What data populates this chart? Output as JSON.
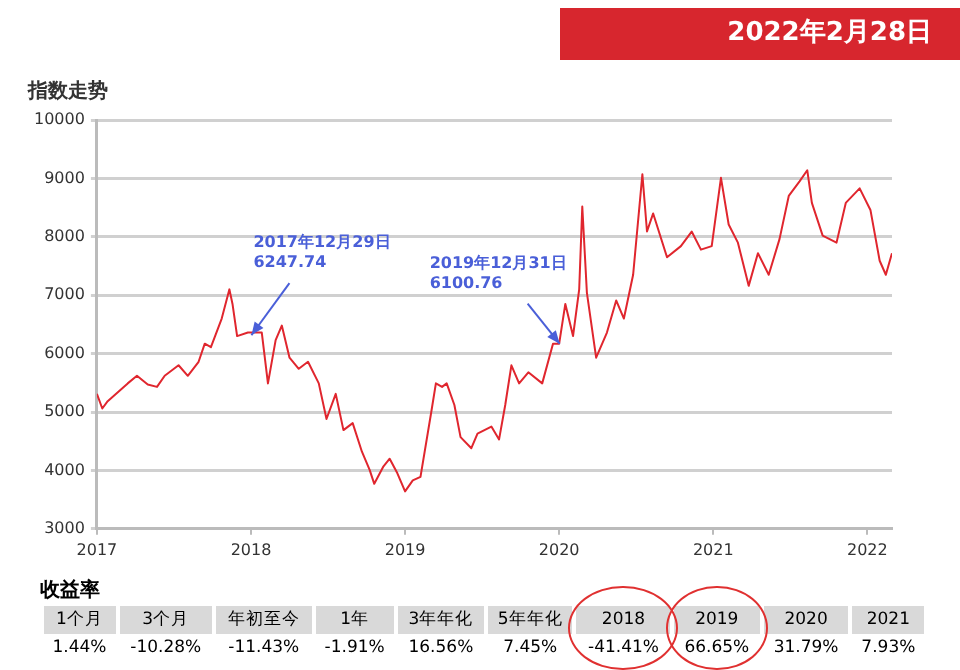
{
  "chart_data": {
    "type": "line",
    "title": "指数走势",
    "subtitle": "2022年2月28日",
    "x": [
      2017.0,
      2017.035,
      2017.07,
      2017.2,
      2017.26,
      2017.33,
      2017.39,
      2017.44,
      2017.53,
      2017.59,
      2017.66,
      2017.7,
      2017.74,
      2017.81,
      2017.86,
      2017.88,
      2017.91,
      2017.98,
      2018.07,
      2018.11,
      2018.16,
      2018.2,
      2018.25,
      2018.31,
      2018.37,
      2018.44,
      2018.49,
      2018.55,
      2018.6,
      2018.66,
      2018.72,
      2018.77,
      2018.8,
      2018.86,
      2018.9,
      2018.95,
      2019.0,
      2019.05,
      2019.1,
      2019.17,
      2019.2,
      2019.24,
      2019.27,
      2019.32,
      2019.36,
      2019.43,
      2019.47,
      2019.56,
      2019.61,
      2019.65,
      2019.69,
      2019.74,
      2019.8,
      2019.89,
      2019.96,
      2020.0,
      2020.04,
      2020.09,
      2020.13,
      2020.15,
      2020.18,
      2020.24,
      2020.31,
      2020.37,
      2020.42,
      2020.48,
      2020.54,
      2020.57,
      2020.61,
      2020.7,
      2020.79,
      2020.86,
      2020.92,
      2020.99,
      2021.05,
      2021.1,
      2021.16,
      2021.23,
      2021.29,
      2021.36,
      2021.43,
      2021.49,
      2021.56,
      2021.61,
      2021.64,
      2021.71,
      2021.8,
      2021.86,
      2021.95,
      2022.02,
      2022.08,
      2022.12,
      2022.16
    ],
    "series": [
      {
        "color": "#e0262e",
        "values": [
          5310,
          5060,
          5185,
          5490,
          5620,
          5470,
          5430,
          5620,
          5800,
          5620,
          5860,
          6170,
          6110,
          6600,
          7100,
          6850,
          6300,
          6360,
          6360,
          5490,
          6230,
          6480,
          5930,
          5740,
          5860,
          5490,
          4880,
          5310,
          4690,
          4810,
          4320,
          4010,
          3770,
          4070,
          4200,
          3950,
          3640,
          3830,
          3890,
          5000,
          5490,
          5430,
          5490,
          5120,
          4570,
          4380,
          4630,
          4750,
          4530,
          5120,
          5800,
          5490,
          5680,
          5490,
          6170,
          6170,
          6850,
          6300,
          7100,
          8520,
          7040,
          5930,
          6360,
          6910,
          6600,
          7350,
          9070,
          8090,
          8400,
          7650,
          7840,
          8090,
          7780,
          7840,
          9010,
          8210,
          7900,
          7160,
          7720,
          7350,
          7960,
          8700,
          8950,
          9140,
          8580,
          8020,
          7900,
          8580,
          8830,
          8460,
          7590,
          7350,
          7720
        ]
      }
    ],
    "xlim": [
      2017,
      2022.16
    ],
    "xticks": [
      2017,
      2018,
      2019,
      2020,
      2021,
      2022
    ],
    "ylim": [
      3000,
      10000
    ],
    "yticks": [
      3000,
      4000,
      5000,
      6000,
      7000,
      8000,
      9000,
      10000
    ],
    "grid": "y",
    "legend": false,
    "marker": "none",
    "line_style": "solid",
    "annotations": [
      {
        "text": "2017年12月29日\n6247.74",
        "x": 2017.99,
        "y": 6247.74
      },
      {
        "text": "2019年12月31日\n6100.76",
        "x": 2019.99,
        "y": 6100.76
      },
      "收益率",
      "1个月",
      "3个月",
      "年初至今",
      "1年",
      "3年年化",
      "5年年化",
      "2018",
      "2019",
      "2020",
      "2021",
      "1.44%",
      "-10.28%",
      "-11.43%",
      "-1.91%",
      "16.56%",
      "7.45%",
      "-41.41%",
      "66.65%",
      "31.79%",
      "7.93%"
    ]
  }
}
